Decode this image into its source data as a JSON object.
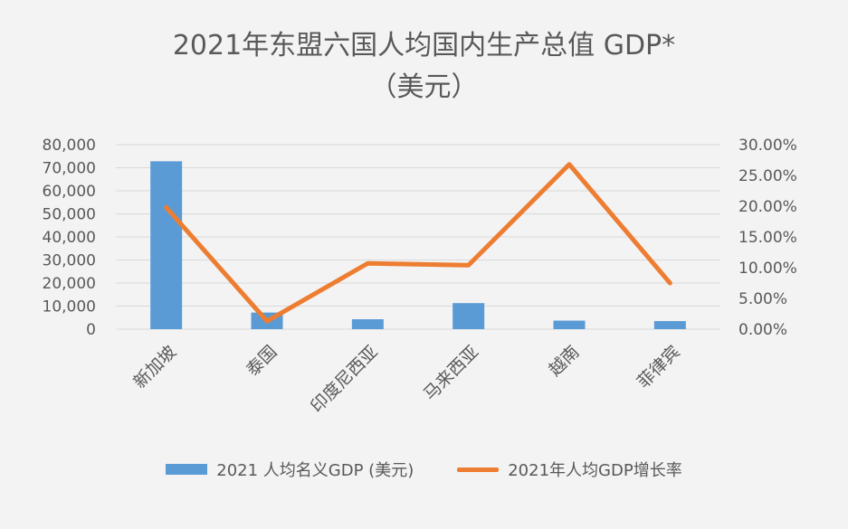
{
  "chart_data": {
    "type": "bar",
    "title": "2021年东盟六国人均国内生产总值 GDP*",
    "subtitle": "（美元）",
    "categories": [
      "新加坡",
      "泰国",
      "印度尼西亚",
      "马来西亚",
      "越南",
      "菲律宾"
    ],
    "series": [
      {
        "name": "2021 人均名义GDP (美元)",
        "type": "bar",
        "axis": "left",
        "color": "#5b9bd5",
        "values": [
          72800,
          7200,
          4300,
          11300,
          3700,
          3500
        ]
      },
      {
        "name": "2021年人均GDP增长率",
        "type": "line",
        "axis": "right",
        "color": "#ed7d31",
        "values": [
          0.198,
          0.013,
          0.107,
          0.104,
          0.268,
          0.075
        ]
      }
    ],
    "y_left": {
      "ylim": [
        0,
        80000
      ],
      "ticks": [
        "0",
        "10,000",
        "20,000",
        "30,000",
        "40,000",
        "50,000",
        "60,000",
        "70,000",
        "80,000"
      ]
    },
    "y_right": {
      "ylim": [
        0,
        0.3
      ],
      "ticks": [
        "0.00%",
        "5.00%",
        "10.00%",
        "15.00%",
        "20.00%",
        "25.00%",
        "30.00%"
      ]
    },
    "grid": true,
    "legend": "bottom"
  }
}
